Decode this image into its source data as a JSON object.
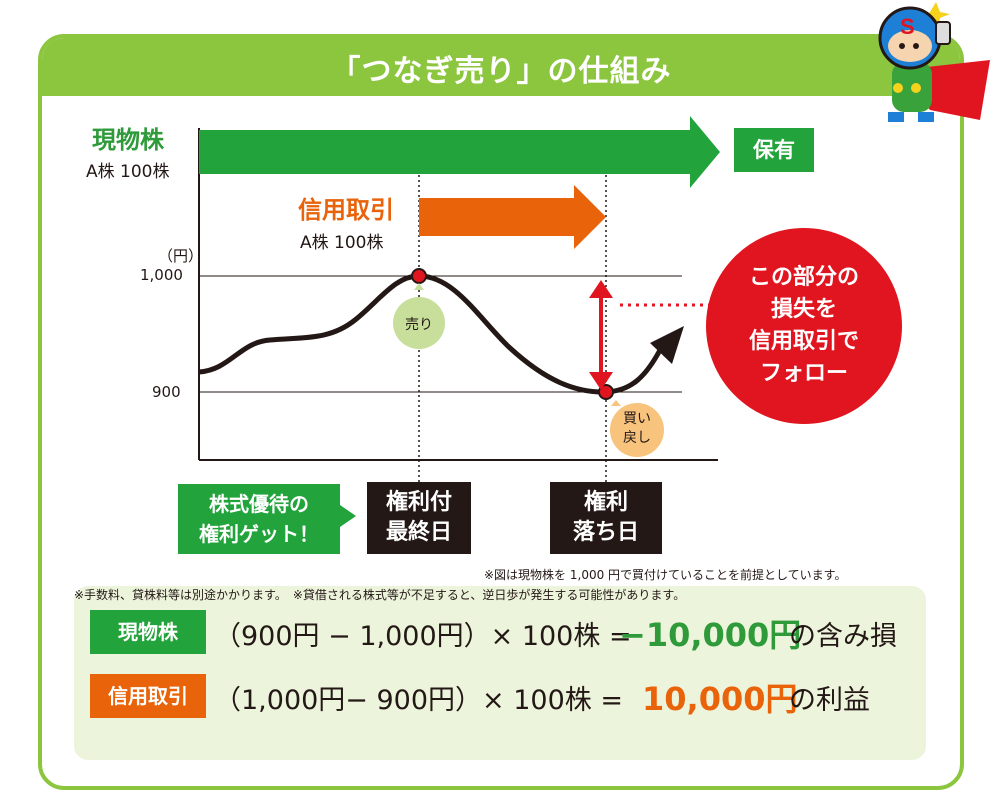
{
  "title": "「つなぎ売り」の仕組み",
  "physical": {
    "label": "現物株",
    "sub": "A株 100株",
    "hold": "保有"
  },
  "credit": {
    "label": "信用取引",
    "sub": "A株 100株"
  },
  "axis": {
    "unit": "（円）",
    "tick_high": "1,000",
    "tick_low": "900"
  },
  "bubbles": {
    "sell": "売り",
    "buyback_1": "買い",
    "buyback_2": "戻し"
  },
  "callout": {
    "line1": "この部分の",
    "line2": "損失を",
    "line3": "信用取引で",
    "line4": "フォロー"
  },
  "right_get": {
    "line1": "株式優待の",
    "line2": "権利ゲット！"
  },
  "record_last": {
    "line1": "権利付",
    "line2": "最終日"
  },
  "ex_date": {
    "line1": "権利",
    "line2": "落ち日"
  },
  "chart_note": "※図は現物株を 1,000 円で買付けていることを前提としています。",
  "calc": {
    "row1": {
      "tag": "現物株",
      "formula": "（900円 − 1,000円）× 100株 =",
      "result": "−10,000円",
      "suffix": "の含み損"
    },
    "row2": {
      "tag": "信用取引",
      "formula": "（1,000円− 900円）× 100株 =",
      "result": "10,000円",
      "suffix": "の利益"
    }
  },
  "footnote": "※手数料、貸株料等は別途かかります。　※貸借される株式等が不足すると、逆日歩が発生する可能性があります。",
  "colors": {
    "frame": "#8cc63f",
    "green": "#22a33b",
    "orange": "#e8630a",
    "red": "#e0151f",
    "dark": "#231815",
    "panel": "#edf4dc"
  }
}
